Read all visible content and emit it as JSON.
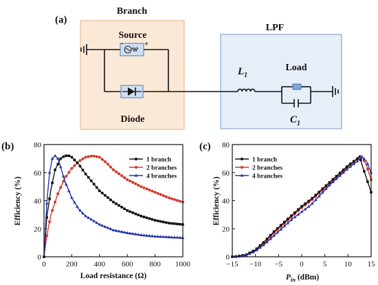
{
  "circuit": {
    "panel_label": "(a)",
    "branch_title": "Branch",
    "branch_title_color": "#e07b27",
    "source_label": "Source",
    "source_minus": "-",
    "source_plus": "+",
    "diode_label": "Diode",
    "lpf_title": "LPF",
    "inductor_label": "L",
    "inductor_sub": "1",
    "load_label": "Load",
    "capacitor_label": "C",
    "capacitor_sub": "1",
    "branch_fill": "#fbe9d7",
    "branch_stroke": "#e9b07c",
    "lpf_fill": "#e6eef8",
    "lpf_stroke": "#7a9ac8",
    "component_fill": "#cfe0f2",
    "component_stroke": "#4c78b5"
  },
  "legend": {
    "s1": "1 branch",
    "s2": "2 branches",
    "s3": "4 branches"
  },
  "chart_data": [
    {
      "type": "line",
      "panel_label": "(b)",
      "xlabel": "Load resistance (Ω)",
      "ylabel": "Efficiency (%)",
      "xlim": [
        0,
        1000
      ],
      "ylim": [
        0,
        80
      ],
      "xticks": [
        "0",
        "200",
        "400",
        "600",
        "800",
        "1000"
      ],
      "yticks": [
        "0",
        "20",
        "40",
        "60",
        "80"
      ],
      "grid": false,
      "legend_position": "top-right",
      "series": [
        {
          "name": "1 branch",
          "color": "#111111",
          "marker": "square",
          "x": [
            0,
            20,
            50,
            80,
            120,
            150,
            180,
            200,
            250,
            300,
            400,
            500,
            600,
            700,
            800,
            900,
            1000
          ],
          "y": [
            0,
            28,
            48,
            62,
            70,
            72,
            72,
            71,
            66,
            59,
            47,
            39,
            33,
            29,
            26,
            24,
            23
          ]
        },
        {
          "name": "2 branches",
          "color": "#d23a2a",
          "marker": "circle",
          "x": [
            0,
            20,
            50,
            100,
            150,
            200,
            250,
            300,
            350,
            400,
            450,
            500,
            600,
            700,
            800,
            900,
            1000
          ],
          "y": [
            0,
            15,
            30,
            45,
            56,
            63,
            68,
            71,
            72,
            71,
            67,
            62,
            55,
            50,
            46,
            42,
            39
          ]
        },
        {
          "name": "4 branches",
          "color": "#2433a8",
          "marker": "triangle",
          "x": [
            0,
            20,
            40,
            60,
            80,
            100,
            120,
            150,
            200,
            250,
            300,
            400,
            500,
            600,
            700,
            800,
            900,
            1000
          ],
          "y": [
            0,
            38,
            60,
            70,
            72,
            70,
            64,
            54,
            42,
            34,
            29,
            23,
            19,
            17,
            15.5,
            14.5,
            14,
            13.5
          ]
        }
      ]
    },
    {
      "type": "line",
      "panel_label": "(c)",
      "xlabel_main": "P",
      "xlabel_sub": "in",
      "xlabel_unit": " (dBm)",
      "ylabel": "Efficiency (%)",
      "xlim": [
        -15,
        15
      ],
      "ylim": [
        0,
        80
      ],
      "xticks": [
        "−15",
        "−10",
        "−5",
        "0",
        "5",
        "10",
        "15"
      ],
      "yticks": [
        "0",
        "20",
        "40",
        "60",
        "80"
      ],
      "grid": false,
      "legend_position": "top-left",
      "series": [
        {
          "name": "1 branch",
          "color": "#111111",
          "marker": "square",
          "x": [
            -15,
            -14,
            -12,
            -10,
            -8,
            -6,
            -4,
            -2,
            0,
            2,
            4,
            6,
            8,
            10,
            12,
            12.5,
            13,
            14,
            15
          ],
          "y": [
            0,
            0.3,
            1.5,
            5,
            11,
            18,
            24,
            30,
            36,
            41,
            47,
            53,
            59,
            65,
            70,
            72,
            66,
            56,
            46
          ]
        },
        {
          "name": "2 branches",
          "color": "#d23a2a",
          "marker": "circle",
          "x": [
            -15,
            -14,
            -12,
            -10,
            -8,
            -6,
            -4,
            -2,
            0,
            2,
            4,
            6,
            8,
            10,
            12,
            12.5,
            13,
            14,
            15
          ],
          "y": [
            0,
            0.2,
            1.2,
            4.5,
            10,
            17,
            23,
            29,
            35,
            40,
            46,
            52,
            58,
            64,
            69.5,
            71,
            72,
            65,
            55
          ]
        },
        {
          "name": "4 branches",
          "color": "#2433a8",
          "marker": "triangle",
          "x": [
            -15,
            -14,
            -12,
            -10,
            -8,
            -6,
            -4,
            -2,
            0,
            2,
            4,
            6,
            8,
            10,
            12,
            12.5,
            13,
            14,
            15
          ],
          "y": [
            0,
            0.2,
            1,
            4,
            9,
            15,
            21,
            27,
            32,
            37,
            44,
            51,
            57,
            63,
            68,
            70,
            71.5,
            68,
            60
          ]
        }
      ]
    }
  ]
}
